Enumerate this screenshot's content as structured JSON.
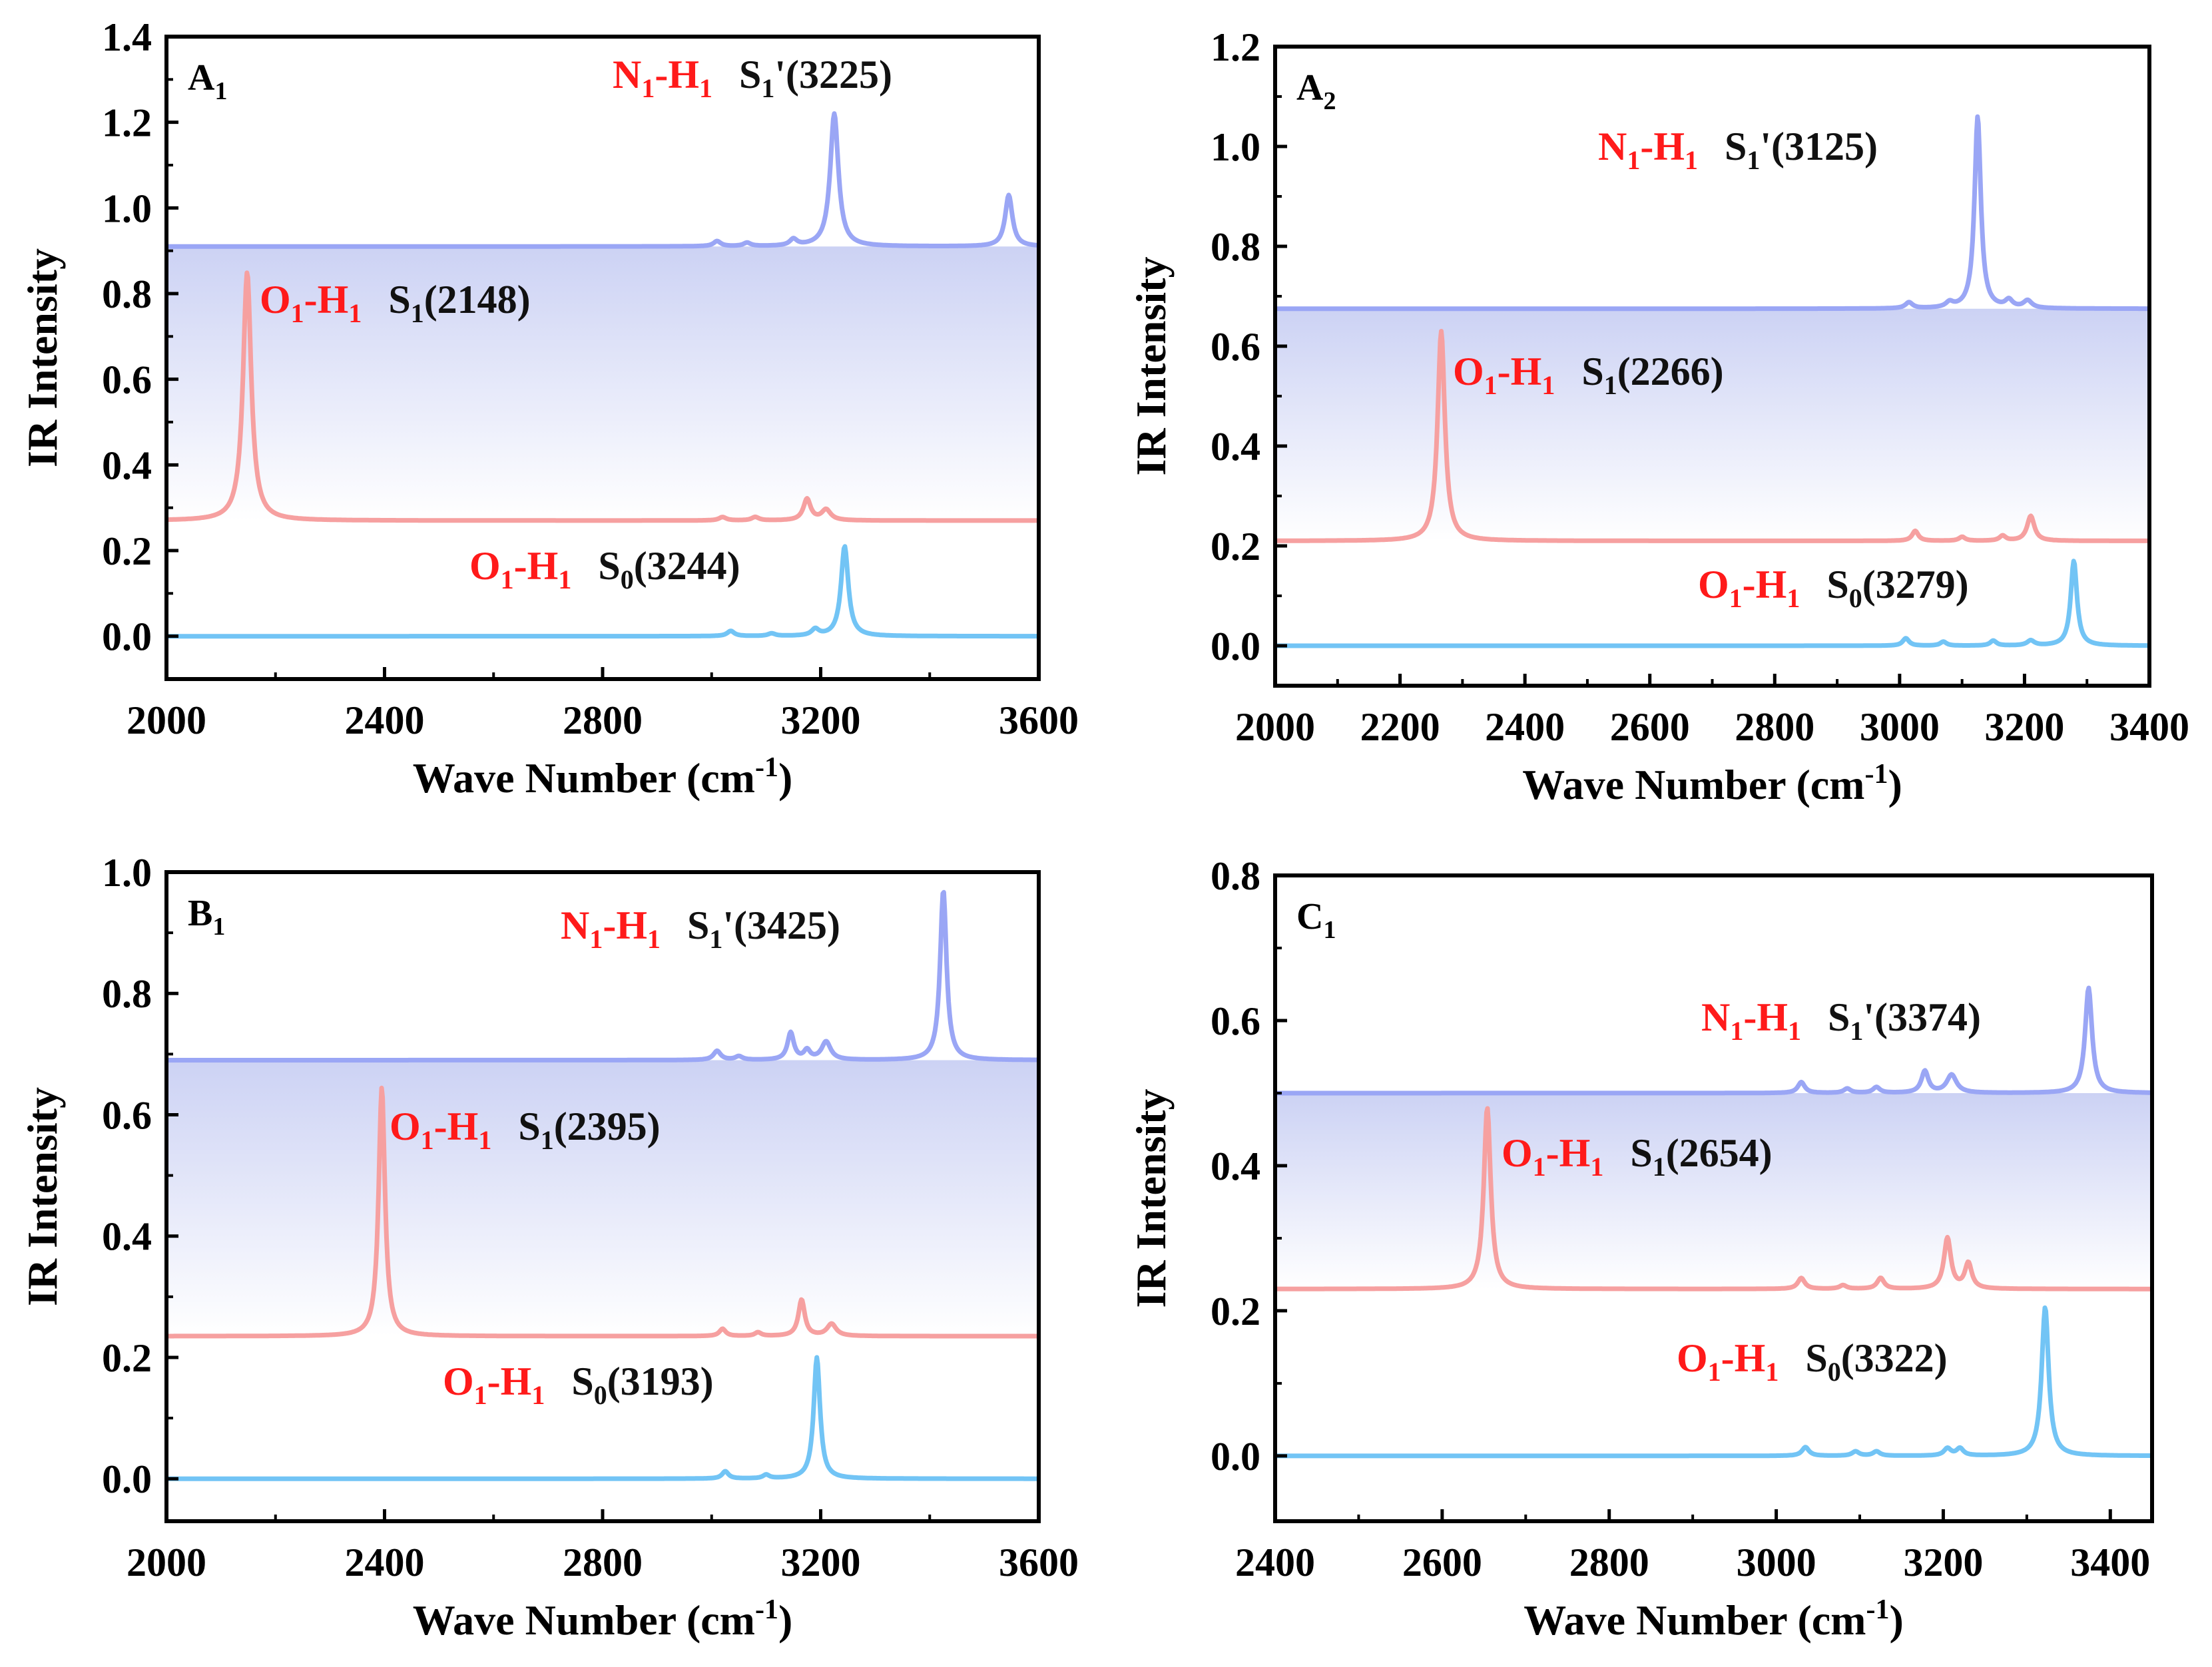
{
  "colors": {
    "s1prime": "#9aa6f5",
    "s1": "#f6a0a0",
    "s0": "#72c4f5",
    "annotation_red": "#ff1a1a",
    "annotation_black": "#111111",
    "band_top": "#ccd2f4",
    "band_bottom": "#ffffff"
  },
  "chart_data": [
    {
      "type": "line",
      "panel_label": "A",
      "panel_sub": "1",
      "xlabel": "Wave Number (cm",
      "xlabel_sup": "-1",
      "xlabel_close": ")",
      "ylabel": "IR Intensity",
      "xlim": [
        2000,
        3600
      ],
      "ylim": [
        -0.1,
        1.4
      ],
      "xticks": [
        2000,
        2400,
        2800,
        3200,
        3600
      ],
      "xtick_labels": [
        "2000",
        "2400",
        "2800",
        "3200",
        "3600"
      ],
      "yticks": [
        0.0,
        0.2,
        0.4,
        0.6,
        0.8,
        1.0,
        1.2,
        1.4
      ],
      "ytick_labels": [
        "0.0",
        "0.2",
        "0.4",
        "0.6",
        "0.8",
        "1.0",
        "1.2",
        "1.4"
      ],
      "band": [
        0.27,
        0.91
      ],
      "series": [
        {
          "name": "S1'",
          "color_key": "s1prime",
          "baseline": 0.91,
          "peaks": [
            [
              3010,
              0.012,
              8
            ],
            [
              3065,
              0.008,
              8
            ],
            [
              3150,
              0.015,
              8
            ],
            [
              3225,
              0.31,
              9
            ],
            [
              3545,
              0.12,
              8
            ]
          ]
        },
        {
          "name": "S1",
          "color_key": "s1",
          "baseline": 0.27,
          "peaks": [
            [
              2148,
              0.58,
              9
            ],
            [
              3020,
              0.008,
              8
            ],
            [
              3080,
              0.008,
              8
            ],
            [
              3175,
              0.05,
              8
            ],
            [
              3210,
              0.025,
              10
            ]
          ]
        },
        {
          "name": "S0",
          "color_key": "s0",
          "baseline": 0.0,
          "peaks": [
            [
              3035,
              0.012,
              8
            ],
            [
              3110,
              0.006,
              8
            ],
            [
              3190,
              0.015,
              8
            ],
            [
              3244,
              0.21,
              8
            ]
          ]
        }
      ],
      "annotations": [
        {
          "bond_a": "N",
          "bond_a_sub": "1",
          "bond_b": "-H",
          "bond_b_sub": "1",
          "state": "S",
          "state_sub": "1",
          "state_rest": "'(3225)"
        },
        {
          "bond_a": "O",
          "bond_a_sub": "1",
          "bond_b": "-H",
          "bond_b_sub": "1",
          "state": "S",
          "state_sub": "1",
          "state_rest": "(2148)"
        },
        {
          "bond_a": "O",
          "bond_a_sub": "1",
          "bond_b": "-H",
          "bond_b_sub": "1",
          "state": "S",
          "state_sub": "0",
          "state_rest": "(3244)"
        }
      ]
    },
    {
      "type": "line",
      "panel_label": "A",
      "panel_sub": "2",
      "xlabel": "Wave Number (cm",
      "xlabel_sup": "-1",
      "xlabel_close": ")",
      "ylabel": "IR Intensity",
      "xlim": [
        2000,
        3400
      ],
      "ylim": [
        -0.08,
        1.2
      ],
      "xticks": [
        2000,
        2200,
        2400,
        2600,
        2800,
        3000,
        3200,
        3400
      ],
      "xtick_labels": [
        "2000",
        "2200",
        "2400",
        "2600",
        "2800",
        "3000",
        "3200",
        "3400"
      ],
      "yticks": [
        0.0,
        0.2,
        0.4,
        0.6,
        0.8,
        1.0,
        1.2
      ],
      "ytick_labels": [
        "0.0",
        "0.2",
        "0.4",
        "0.6",
        "0.8",
        "1.0",
        "1.2"
      ],
      "band": [
        0.21,
        0.675
      ],
      "series": [
        {
          "name": "S1'",
          "color_key": "s1prime",
          "baseline": 0.675,
          "peaks": [
            [
              3015,
              0.012,
              7
            ],
            [
              3080,
              0.01,
              7
            ],
            [
              3125,
              0.385,
              6
            ],
            [
              3175,
              0.015,
              7
            ],
            [
              3205,
              0.015,
              8
            ]
          ]
        },
        {
          "name": "S1",
          "color_key": "s1",
          "baseline": 0.21,
          "peaks": [
            [
              2266,
              0.42,
              7
            ],
            [
              3025,
              0.02,
              6
            ],
            [
              3100,
              0.008,
              6
            ],
            [
              3165,
              0.01,
              6
            ],
            [
              3210,
              0.05,
              7
            ]
          ]
        },
        {
          "name": "S0",
          "color_key": "s0",
          "baseline": 0.0,
          "peaks": [
            [
              3010,
              0.015,
              6
            ],
            [
              3070,
              0.008,
              6
            ],
            [
              3150,
              0.01,
              6
            ],
            [
              3210,
              0.01,
              7
            ],
            [
              3279,
              0.17,
              6
            ]
          ]
        }
      ],
      "annotations": [
        {
          "bond_a": "N",
          "bond_a_sub": "1",
          "bond_b": "-H",
          "bond_b_sub": "1",
          "state": "S",
          "state_sub": "1",
          "state_rest": "'(3125)"
        },
        {
          "bond_a": "O",
          "bond_a_sub": "1",
          "bond_b": "-H",
          "bond_b_sub": "1",
          "state": "S",
          "state_sub": "1",
          "state_rest": "(2266)"
        },
        {
          "bond_a": "O",
          "bond_a_sub": "1",
          "bond_b": "-H",
          "bond_b_sub": "1",
          "state": "S",
          "state_sub": "0",
          "state_rest": "(3279)"
        }
      ]
    },
    {
      "type": "line",
      "panel_label": "B",
      "panel_sub": "1",
      "xlabel": "Wave Number (cm",
      "xlabel_sup": "-1",
      "xlabel_close": ")",
      "ylabel": "IR Intensity",
      "xlim": [
        2000,
        3600
      ],
      "ylim": [
        -0.07,
        1.0
      ],
      "xticks": [
        2000,
        2400,
        2800,
        3200,
        3600
      ],
      "xtick_labels": [
        "2000",
        "2400",
        "2800",
        "3200",
        "3600"
      ],
      "yticks": [
        0.0,
        0.2,
        0.4,
        0.6,
        0.8,
        1.0
      ],
      "ytick_labels": [
        "0.0",
        "0.2",
        "0.4",
        "0.6",
        "0.8",
        "1.0"
      ],
      "band": [
        0.235,
        0.69
      ],
      "series": [
        {
          "name": "S1'",
          "color_key": "s1prime",
          "baseline": 0.69,
          "peaks": [
            [
              3010,
              0.015,
              8
            ],
            [
              3050,
              0.006,
              8
            ],
            [
              3145,
              0.045,
              7
            ],
            [
              3175,
              0.015,
              7
            ],
            [
              3210,
              0.03,
              10
            ],
            [
              3425,
              0.28,
              7
            ]
          ]
        },
        {
          "name": "S1",
          "color_key": "s1",
          "baseline": 0.235,
          "peaks": [
            [
              2395,
              0.41,
              7
            ],
            [
              3020,
              0.012,
              7
            ],
            [
              3085,
              0.006,
              7
            ],
            [
              3165,
              0.06,
              7
            ],
            [
              3220,
              0.02,
              10
            ]
          ]
        },
        {
          "name": "S0",
          "color_key": "s0",
          "baseline": 0.0,
          "peaks": [
            [
              3025,
              0.012,
              7
            ],
            [
              3100,
              0.006,
              7
            ],
            [
              3193,
              0.2,
              7
            ]
          ]
        }
      ],
      "annotations": [
        {
          "bond_a": "N",
          "bond_a_sub": "1",
          "bond_b": "-H",
          "bond_b_sub": "1",
          "state": "S",
          "state_sub": "1",
          "state_rest": "'(3425)"
        },
        {
          "bond_a": "O",
          "bond_a_sub": "1",
          "bond_b": "-H",
          "bond_b_sub": "1",
          "state": "S",
          "state_sub": "1",
          "state_rest": "(2395)"
        },
        {
          "bond_a": "O",
          "bond_a_sub": "1",
          "bond_b": "-H",
          "bond_b_sub": "1",
          "state": "S",
          "state_sub": "0",
          "state_rest": "(3193)"
        }
      ]
    },
    {
      "type": "line",
      "panel_label": "C",
      "panel_sub": "1",
      "xlabel": "Wave Number (cm",
      "xlabel_sup": "-1",
      "xlabel_close": ")",
      "ylabel": "IR Intensity",
      "xlim": [
        2400,
        3450
      ],
      "ylim": [
        -0.09,
        0.8
      ],
      "xticks": [
        2400,
        2600,
        2800,
        3000,
        3200,
        3400
      ],
      "xtick_labels": [
        "2400",
        "2600",
        "2800",
        "3000",
        "3200",
        "3400"
      ],
      "yticks": [
        0.0,
        0.2,
        0.4,
        0.6,
        0.8
      ],
      "ytick_labels": [
        "0.0",
        "0.2",
        "0.4",
        "0.6",
        "0.8"
      ],
      "band": [
        0.23,
        0.5
      ],
      "series": [
        {
          "name": "S1'",
          "color_key": "s1prime",
          "baseline": 0.5,
          "peaks": [
            [
              3030,
              0.015,
              5
            ],
            [
              3085,
              0.006,
              5
            ],
            [
              3120,
              0.008,
              5
            ],
            [
              3178,
              0.03,
              5
            ],
            [
              3210,
              0.025,
              7
            ],
            [
              3374,
              0.145,
              5
            ]
          ]
        },
        {
          "name": "S1",
          "color_key": "s1",
          "baseline": 0.23,
          "peaks": [
            [
              2654,
              0.25,
              5
            ],
            [
              3030,
              0.015,
              5
            ],
            [
              3080,
              0.005,
              5
            ],
            [
              3125,
              0.015,
              5
            ],
            [
              3205,
              0.07,
              5
            ],
            [
              3230,
              0.035,
              5
            ]
          ]
        },
        {
          "name": "S0",
          "color_key": "s0",
          "baseline": 0.0,
          "peaks": [
            [
              3035,
              0.012,
              5
            ],
            [
              3095,
              0.006,
              5
            ],
            [
              3120,
              0.006,
              5
            ],
            [
              3205,
              0.01,
              5
            ],
            [
              3220,
              0.01,
              5
            ],
            [
              3322,
              0.205,
              5
            ]
          ]
        }
      ],
      "annotations": [
        {
          "bond_a": "N",
          "bond_a_sub": "1",
          "bond_b": "-H",
          "bond_b_sub": "1",
          "state": "S",
          "state_sub": "1",
          "state_rest": "'(3374)"
        },
        {
          "bond_a": "O",
          "bond_a_sub": "1",
          "bond_b": "-H",
          "bond_b_sub": "1",
          "state": "S",
          "state_sub": "1",
          "state_rest": "(2654)"
        },
        {
          "bond_a": "O",
          "bond_a_sub": "1",
          "bond_b": "-H",
          "bond_b_sub": "1",
          "state": "S",
          "state_sub": "0",
          "state_rest": "(3322)"
        }
      ]
    }
  ]
}
